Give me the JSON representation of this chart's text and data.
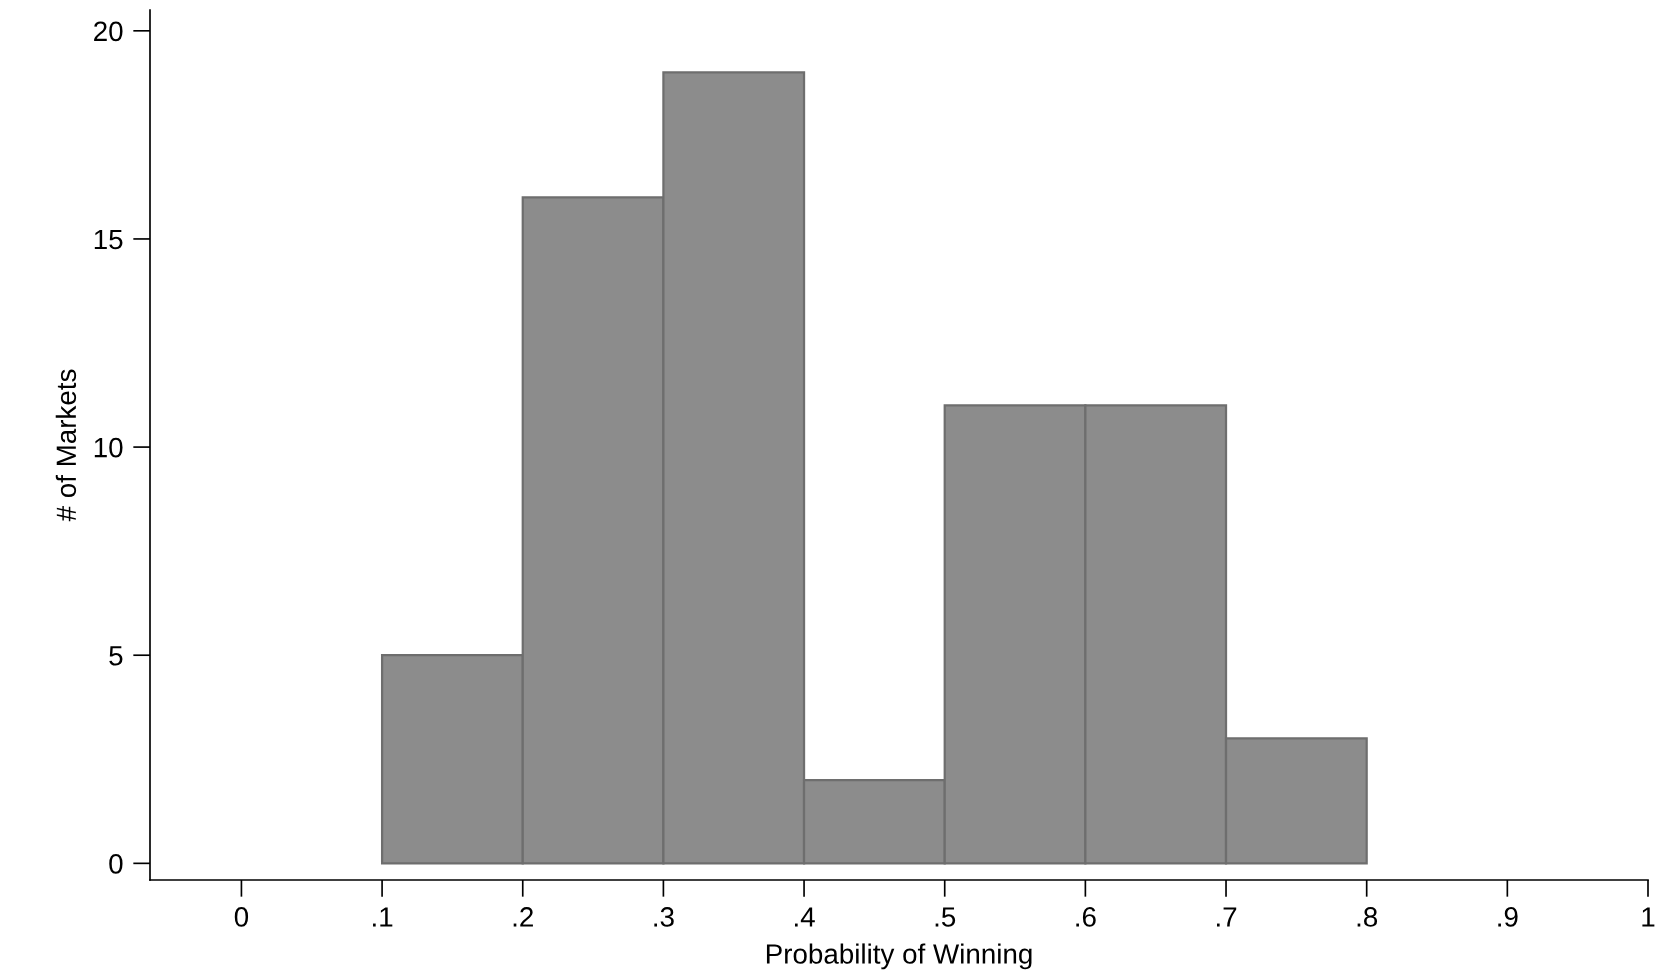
{
  "chart_data": {
    "type": "histogram",
    "xlabel": "Probability of Winning",
    "ylabel": "# of Markets",
    "bins": [
      0.1,
      0.2,
      0.3,
      0.4,
      0.5,
      0.6,
      0.7,
      0.8
    ],
    "values": [
      5,
      16,
      19,
      2,
      11,
      11,
      3
    ],
    "color": "#8c8c8c",
    "xlim": [
      -0.065,
      1.0
    ],
    "ylim": [
      -0.4,
      20.5
    ],
    "xticks": [
      0,
      {
        "value": 0.1,
        "label": ".1"
      },
      {
        "value": 0.2,
        "label": ".2"
      },
      {
        "value": 0.3,
        "label": ".3"
      },
      {
        "value": 0.4,
        "label": ".4"
      },
      {
        "value": 0.5,
        "label": ".5"
      },
      {
        "value": 0.6,
        "label": ".6"
      },
      {
        "value": 0.7,
        "label": ".7"
      },
      {
        "value": 0.8,
        "label": ".8"
      },
      {
        "value": 0.9,
        "label": ".9"
      },
      1
    ],
    "yticks": [
      0,
      5,
      10,
      15,
      20
    ],
    "grid": false
  }
}
